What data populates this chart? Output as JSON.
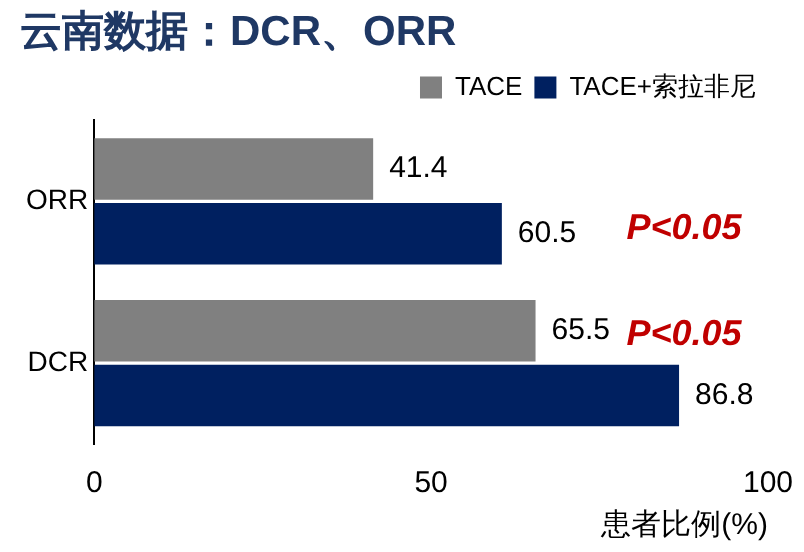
{
  "chart_data": {
    "type": "bar",
    "orientation": "horizontal",
    "title": "云南数据：DCR、ORR",
    "xlabel": "患者比例(%)",
    "categories": [
      "ORR",
      "DCR"
    ],
    "series": [
      {
        "name": "TACE",
        "color": "#808080",
        "values": [
          41.4,
          65.5
        ]
      },
      {
        "name": "TACE+索拉非尼",
        "color": "#002060",
        "values": [
          60.5,
          86.8
        ]
      }
    ],
    "xlim": [
      0,
      100
    ],
    "xticks": [
      0,
      50,
      100
    ],
    "data_labels": true,
    "grid": false,
    "legend": "top right",
    "annotations": [
      "P<0.05",
      "P<0.05"
    ]
  }
}
